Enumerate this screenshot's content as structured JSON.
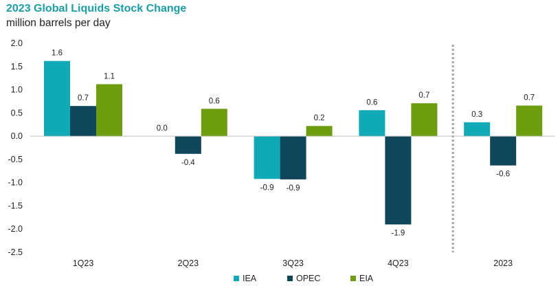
{
  "title": "2023 Global Liquids Stock Change",
  "subtitle": "million barrels per day",
  "chart_data": {
    "type": "bar",
    "title": "2023 Global Liquids Stock Change",
    "ylabel": "million barrels per day",
    "xlabel": "",
    "ylim": [
      -2.5,
      2.0
    ],
    "yticks": [
      "2.0",
      "1.5",
      "1.0",
      "0.5",
      "0.0",
      "-0.5",
      "-1.0",
      "-1.5",
      "-2.0",
      "-2.5"
    ],
    "categories": [
      "1Q23",
      "2Q23",
      "3Q23",
      "4Q23",
      "2023"
    ],
    "series": [
      {
        "name": "IEA",
        "color": "#10a9b6",
        "values": [
          1.62,
          0.0,
          -0.92,
          0.56,
          0.3
        ],
        "labels": [
          "1.6",
          "0.0",
          "-0.9",
          "0.6",
          "0.3"
        ]
      },
      {
        "name": "OPEC",
        "color": "#0f465c",
        "values": [
          0.65,
          -0.38,
          -0.93,
          -1.9,
          -0.63
        ],
        "labels": [
          "0.7",
          "-0.4",
          "-0.9",
          "-1.9",
          "-0.6"
        ]
      },
      {
        "name": "EIA",
        "color": "#6e9e0f",
        "values": [
          1.12,
          0.59,
          0.22,
          0.71,
          0.66
        ],
        "labels": [
          "1.1",
          "0.6",
          "0.2",
          "0.7",
          "0.7"
        ]
      }
    ],
    "grid": false,
    "separator_before": "2023",
    "legend_position": "bottom-center"
  }
}
